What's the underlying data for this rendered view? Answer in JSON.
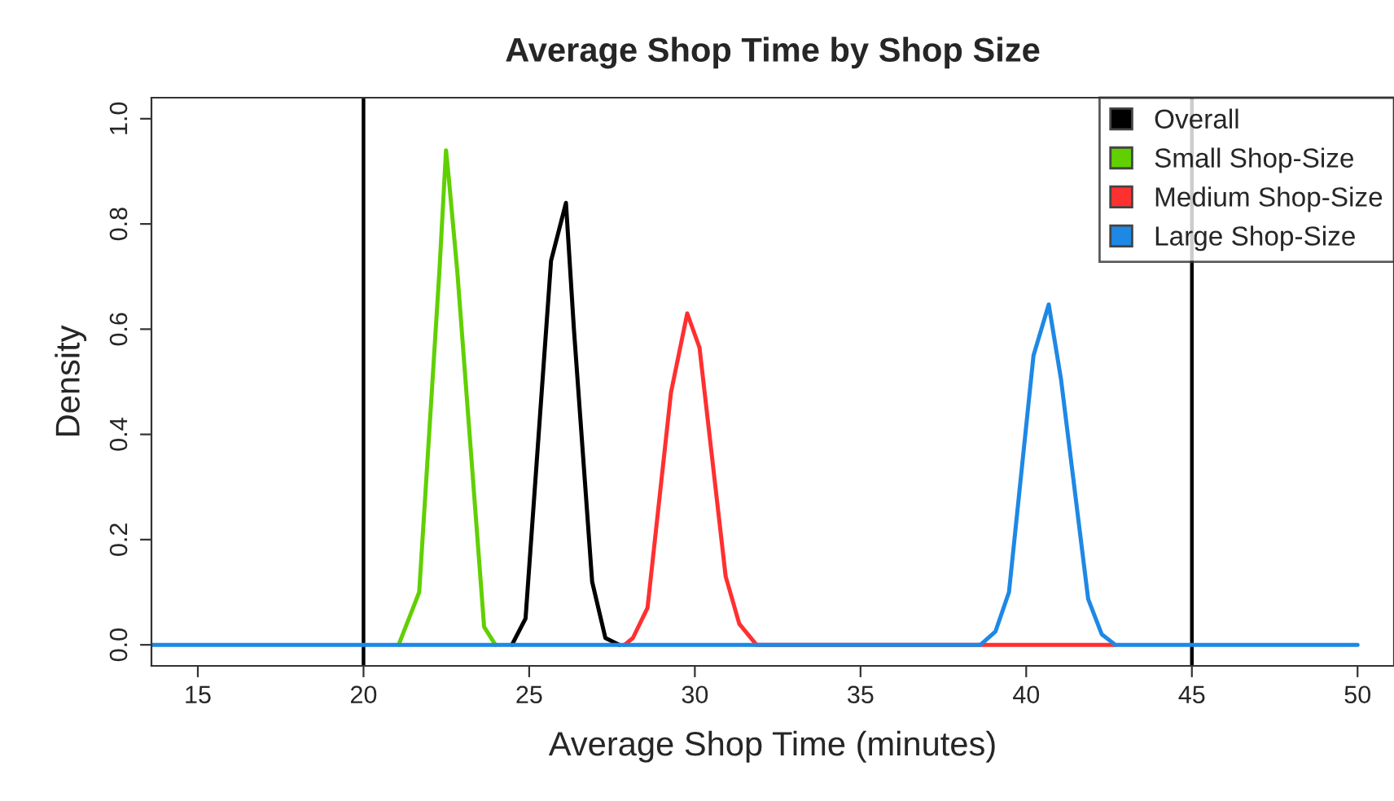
{
  "chart_data": {
    "type": "line",
    "title": "Average Shop Time by Shop Size",
    "xlabel": "Average Shop Time (minutes)",
    "ylabel": "Density",
    "xlim": [
      13.6,
      51.1
    ],
    "ylim": [
      -0.04,
      1.04
    ],
    "xticks": [
      15,
      20,
      25,
      30,
      35,
      40,
      45,
      50
    ],
    "yticks": [
      {
        "value": 0,
        "label": "0.0"
      },
      {
        "value": 0.2,
        "label": "0.2"
      },
      {
        "value": 0.4,
        "label": "0.4"
      },
      {
        "value": 0.6,
        "label": "0.6"
      },
      {
        "value": 0.8,
        "label": "0.8"
      },
      {
        "value": 1.0,
        "label": "1.0"
      }
    ],
    "grid": false,
    "legend": "top right",
    "marker": "none",
    "line_style": "solid",
    "ref_lines": [
      {
        "axis": "x",
        "value": 20,
        "color": "#000000"
      },
      {
        "axis": "x",
        "value": 45,
        "color": "#000000"
      }
    ],
    "series": [
      {
        "name": "Overall",
        "color": "#000000",
        "x": [
          24.48,
          24.89,
          25.66,
          26.11,
          26.35,
          26.9,
          27.3,
          27.72
        ],
        "values": [
          0,
          0.05,
          0.73,
          0.84,
          0.6,
          0.12,
          0.013,
          0
        ]
      },
      {
        "name": "Small Shop-Size",
        "color": "#61d000",
        "x": [
          21.06,
          21.68,
          22.29,
          22.49,
          22.57,
          22.83,
          23.64,
          23.98
        ],
        "values": [
          0,
          0.1,
          0.71,
          0.94,
          0.89,
          0.71,
          0.034,
          0
        ]
      },
      {
        "name": "Medium Shop-Size",
        "color": "#ff3030",
        "x": [
          27.88,
          28.13,
          28.57,
          29.28,
          29.77,
          30.14,
          30.93,
          31.34,
          31.86,
          38.62,
          42.69
        ],
        "values": [
          0,
          0.013,
          0.07,
          0.48,
          0.63,
          0.565,
          0.13,
          0.04,
          0,
          0,
          0
        ]
      },
      {
        "name": "Large Shop-Size",
        "color": "#1e88e5",
        "x": [
          13.6,
          38.62,
          39.07,
          39.48,
          40.22,
          40.68,
          41.05,
          41.87,
          42.28,
          42.69,
          50
        ],
        "values": [
          0,
          0,
          0.025,
          0.1,
          0.55,
          0.647,
          0.505,
          0.087,
          0.02,
          0,
          0
        ]
      }
    ]
  }
}
